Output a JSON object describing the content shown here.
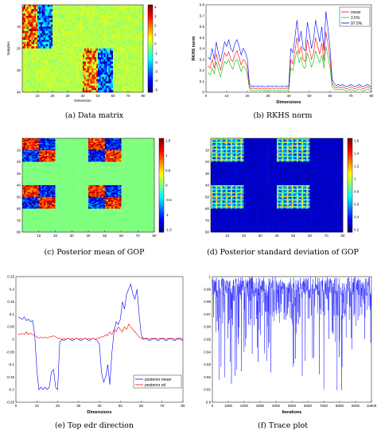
{
  "figure": {
    "captions": {
      "a": "(a)  Data matrix",
      "b": "(b)  RKHS norm",
      "c": "(c)  Posterior mean of GOP",
      "d": "(d)  Posterior standard deviation of GOP",
      "e": "(e)  Top edr direction",
      "f": "(f)  Trace plot"
    }
  },
  "chart_data": [
    {
      "id": "a",
      "type": "heatmap",
      "title": "",
      "xlabel": "Dimension",
      "ylabel": "Samples",
      "x_ticks": [
        "10",
        "20",
        "30",
        "40",
        "50",
        "60",
        "70",
        "80"
      ],
      "y_ticks": [
        "10",
        "20",
        "30",
        "40"
      ],
      "colorbar_ticks": [
        "4",
        "3",
        "2",
        "1",
        "0",
        "-1",
        "-2",
        "-3",
        "-4",
        "-5"
      ],
      "colorbar_range": [
        -5,
        4
      ],
      "blocks": [
        {
          "rows": [
            1,
            20
          ],
          "cols": [
            1,
            20
          ],
          "pattern": "mixed warm/cool"
        },
        {
          "rows": [
            21,
            40
          ],
          "cols": [
            41,
            60
          ],
          "pattern": "mixed warm/cool"
        }
      ],
      "background_value": 0
    },
    {
      "id": "b",
      "type": "line",
      "title": "",
      "xlabel": "Dimensions",
      "ylabel": "RKHS norm",
      "xlim": [
        0,
        80
      ],
      "ylim": [
        0,
        0.8
      ],
      "x_ticks": [
        "0",
        "10",
        "20",
        "30",
        "40",
        "50",
        "60",
        "70",
        "80"
      ],
      "y_ticks": [
        "0",
        "0.1",
        "0.2",
        "0.3",
        "0.4",
        "0.5",
        "0.6",
        "0.7",
        "0.8"
      ],
      "legend_position": "top-right",
      "series": [
        {
          "name": "mean",
          "color": "#ff0000",
          "values": [
            0.24,
            0.22,
            0.3,
            0.22,
            0.35,
            0.27,
            0.2,
            0.28,
            0.36,
            0.33,
            0.37,
            0.3,
            0.28,
            0.35,
            0.38,
            0.32,
            0.25,
            0.3,
            0.28,
            0.22,
            0.05,
            0.03,
            0.04,
            0.03,
            0.04,
            0.03,
            0.04,
            0.03,
            0.03,
            0.04,
            0.03,
            0.04,
            0.03,
            0.04,
            0.03,
            0.03,
            0.04,
            0.03,
            0.04,
            0.03,
            0.3,
            0.26,
            0.38,
            0.5,
            0.35,
            0.42,
            0.3,
            0.28,
            0.48,
            0.4,
            0.3,
            0.36,
            0.5,
            0.42,
            0.35,
            0.45,
            0.28,
            0.55,
            0.44,
            0.3,
            0.08,
            0.05,
            0.04,
            0.05,
            0.04,
            0.05,
            0.04,
            0.03,
            0.04,
            0.05,
            0.04,
            0.03,
            0.04,
            0.05,
            0.04,
            0.03,
            0.04,
            0.05,
            0.04,
            0.03
          ]
        },
        {
          "name": "2.5%",
          "color": "#00c000",
          "values": [
            0.18,
            0.16,
            0.22,
            0.17,
            0.28,
            0.2,
            0.14,
            0.22,
            0.28,
            0.26,
            0.3,
            0.24,
            0.21,
            0.28,
            0.3,
            0.25,
            0.19,
            0.24,
            0.22,
            0.16,
            0.03,
            0.01,
            0.02,
            0.01,
            0.02,
            0.01,
            0.02,
            0.01,
            0.01,
            0.02,
            0.01,
            0.02,
            0.01,
            0.02,
            0.01,
            0.01,
            0.02,
            0.01,
            0.02,
            0.01,
            0.22,
            0.2,
            0.3,
            0.38,
            0.27,
            0.32,
            0.23,
            0.22,
            0.36,
            0.3,
            0.23,
            0.28,
            0.38,
            0.32,
            0.27,
            0.34,
            0.22,
            0.42,
            0.33,
            0.22,
            0.05,
            0.03,
            0.02,
            0.03,
            0.02,
            0.03,
            0.02,
            0.01,
            0.02,
            0.03,
            0.02,
            0.01,
            0.02,
            0.03,
            0.02,
            0.01,
            0.02,
            0.03,
            0.02,
            0.01
          ]
        },
        {
          "name": "97.5%",
          "color": "#0000ff",
          "values": [
            0.32,
            0.3,
            0.4,
            0.3,
            0.46,
            0.36,
            0.28,
            0.37,
            0.46,
            0.42,
            0.48,
            0.4,
            0.37,
            0.45,
            0.48,
            0.42,
            0.34,
            0.4,
            0.37,
            0.3,
            0.08,
            0.05,
            0.06,
            0.05,
            0.06,
            0.05,
            0.06,
            0.05,
            0.05,
            0.06,
            0.05,
            0.06,
            0.05,
            0.06,
            0.05,
            0.05,
            0.06,
            0.05,
            0.06,
            0.05,
            0.4,
            0.36,
            0.5,
            0.66,
            0.46,
            0.56,
            0.4,
            0.38,
            0.64,
            0.54,
            0.4,
            0.48,
            0.66,
            0.56,
            0.46,
            0.6,
            0.38,
            0.74,
            0.58,
            0.4,
            0.12,
            0.08,
            0.06,
            0.07,
            0.06,
            0.07,
            0.06,
            0.05,
            0.06,
            0.07,
            0.06,
            0.05,
            0.06,
            0.07,
            0.06,
            0.05,
            0.06,
            0.07,
            0.06,
            0.05
          ]
        }
      ]
    },
    {
      "id": "c",
      "type": "heatmap",
      "title": "",
      "x_ticks": [
        "10",
        "20",
        "30",
        "40",
        "50",
        "60",
        "70",
        "80"
      ],
      "y_ticks": [
        "10",
        "20",
        "30",
        "40",
        "50",
        "60",
        "70",
        "80"
      ],
      "colorbar_ticks": [
        "1.5",
        "1",
        "0.5",
        "0",
        "-0.5",
        "-1",
        "-1.5"
      ],
      "colorbar_range": [
        -1.5,
        1.5
      ],
      "blocks": [
        {
          "rows": [
            1,
            20
          ],
          "cols": [
            1,
            20
          ]
        },
        {
          "rows": [
            1,
            20
          ],
          "cols": [
            41,
            60
          ]
        },
        {
          "rows": [
            41,
            60
          ],
          "cols": [
            1,
            20
          ]
        },
        {
          "rows": [
            41,
            60
          ],
          "cols": [
            41,
            60
          ]
        }
      ]
    },
    {
      "id": "d",
      "type": "heatmap",
      "title": "",
      "x_ticks": [
        "10",
        "20",
        "30",
        "40",
        "50",
        "60",
        "70",
        "80"
      ],
      "y_ticks": [
        "10",
        "20",
        "30",
        "40",
        "50",
        "60",
        "70",
        "80"
      ],
      "colorbar_ticks": [
        "1.6",
        "1.4",
        "1.2",
        "1",
        "0.8",
        "0.6",
        "0.4",
        "0.2"
      ],
      "colorbar_range": [
        0,
        1.8
      ],
      "blocks": [
        {
          "rows": [
            1,
            20
          ],
          "cols": [
            1,
            20
          ]
        },
        {
          "rows": [
            1,
            20
          ],
          "cols": [
            41,
            60
          ]
        },
        {
          "rows": [
            41,
            60
          ],
          "cols": [
            1,
            20
          ]
        },
        {
          "rows": [
            41,
            60
          ],
          "cols": [
            41,
            60
          ]
        }
      ]
    },
    {
      "id": "e",
      "type": "line",
      "title": "",
      "xlabel": "Dimensions",
      "ylabel": "",
      "xlim": [
        0,
        80
      ],
      "ylim": [
        -0.25,
        0.25
      ],
      "x_ticks": [
        "0",
        "10",
        "20",
        "30",
        "40",
        "50",
        "60",
        "70",
        "80"
      ],
      "y_ticks": [
        "0.25",
        "0.2",
        "0.15",
        "0.1",
        "0.05",
        "0",
        "-0.05",
        "-0.1",
        "-0.15",
        "-0.2",
        "-0.25"
      ],
      "legend_position": "bottom-right",
      "series": [
        {
          "name": "posterior mean",
          "color": "#0000ff",
          "values": [
            0.09,
            0.085,
            0.08,
            0.09,
            0.075,
            0.08,
            0.07,
            0.075,
            0.02,
            -0.12,
            -0.2,
            -0.19,
            -0.2,
            -0.19,
            -0.2,
            -0.19,
            -0.13,
            -0.12,
            -0.19,
            -0.2,
            -0.01,
            0.0,
            -0.005,
            0.0,
            0.005,
            0.0,
            -0.005,
            0.0,
            0.005,
            0.0,
            -0.005,
            0.0,
            0.005,
            0.0,
            -0.005,
            0.0,
            0.005,
            0.0,
            -0.005,
            -0.02,
            -0.13,
            -0.17,
            -0.15,
            -0.1,
            -0.18,
            -0.05,
            0.03,
            0.07,
            0.06,
            0.08,
            0.15,
            0.12,
            0.18,
            0.2,
            0.22,
            0.18,
            0.16,
            0.2,
            0.1,
            0.02,
            0.0,
            0.005,
            0.0,
            -0.005,
            0.0,
            0.005,
            0.0,
            -0.005,
            0.0,
            0.005,
            0.0,
            -0.005,
            0.0,
            0.005,
            0.0,
            -0.005,
            0.0,
            0.005,
            0.0,
            -0.005
          ]
        },
        {
          "name": "posterior sd",
          "color": "#ff0000",
          "values": [
            0.02,
            0.02,
            0.025,
            0.02,
            0.03,
            0.02,
            0.025,
            0.02,
            0.015,
            0.01,
            0.005,
            0.01,
            0.005,
            0.01,
            0.005,
            0.01,
            0.01,
            0.015,
            0.01,
            0.005,
            0.005,
            0.0,
            0.005,
            0.0,
            0.005,
            0.0,
            0.005,
            0.0,
            0.005,
            0.0,
            0.005,
            0.0,
            0.005,
            0.0,
            0.005,
            0.0,
            0.005,
            0.0,
            0.005,
            0.005,
            0.01,
            0.01,
            0.02,
            0.015,
            0.03,
            0.02,
            0.04,
            0.03,
            0.05,
            0.04,
            0.03,
            0.05,
            0.04,
            0.06,
            0.05,
            0.04,
            0.03,
            0.02,
            0.01,
            0.005,
            0.005,
            0.0,
            0.005,
            0.0,
            0.005,
            0.0,
            0.005,
            0.0,
            0.005,
            0.0,
            0.005,
            0.0,
            0.005,
            0.0,
            0.005,
            0.0,
            0.005,
            0.0,
            0.005,
            0.0
          ]
        }
      ]
    },
    {
      "id": "f",
      "type": "line",
      "title": "",
      "xlabel": "Iterations",
      "ylabel": "",
      "xlim": [
        0,
        10000
      ],
      "ylim": [
        0.9,
        1.0
      ],
      "x_ticks": [
        "0",
        "1000",
        "2000",
        "3000",
        "4000",
        "5000",
        "6000",
        "7000",
        "8000",
        "9000",
        "10000"
      ],
      "y_ticks": [
        "1",
        "0.99",
        "0.98",
        "0.97",
        "0.96",
        "0.95",
        "0.94",
        "0.93",
        "0.92",
        "0.91",
        "0.9"
      ],
      "series": [
        {
          "name": "",
          "color": "#0000ff",
          "summary": "dense trace concentrated between 0.985 and 1.0 with downward spikes to about 0.90"
        }
      ]
    }
  ]
}
